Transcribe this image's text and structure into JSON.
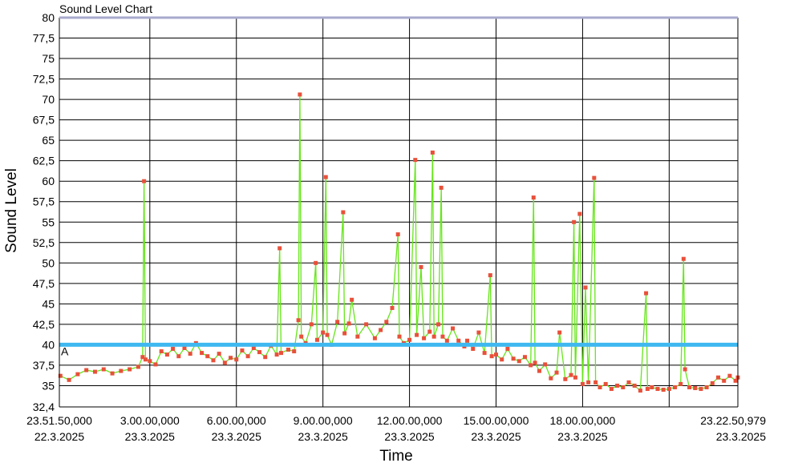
{
  "chart_data": {
    "type": "line",
    "title": "Sound Level Chart",
    "xlabel": "Time",
    "ylabel": "Sound Level",
    "ylim": [
      32.4,
      80
    ],
    "grid": true,
    "y_ticks": [
      "80",
      "77,5",
      "75",
      "72,5",
      "70",
      "67,5",
      "65",
      "62,5",
      "60",
      "57,5",
      "55",
      "52,5",
      "50",
      "47,5",
      "45",
      "42,5",
      "40",
      "37,5",
      "35",
      "32,4"
    ],
    "x_ticks": [
      {
        "time": "23.51.50,000",
        "date": "22.3.2025"
      },
      {
        "time": "3.00.00,000",
        "date": "23.3.2025"
      },
      {
        "time": "6.00.00,000",
        "date": "23.3.2025"
      },
      {
        "time": "9.00.00,000",
        "date": "23.3.2025"
      },
      {
        "time": "12.00.00,000",
        "date": "23.3.2025"
      },
      {
        "time": "15.00.00,000",
        "date": "23.3.2025"
      },
      {
        "time": "18.00.00,000",
        "date": "23.3.2025"
      },
      {
        "time": "23.22.50,979",
        "date": "23.3.2025"
      }
    ],
    "x_tick_hours": [
      -0.1361,
      3,
      6,
      9,
      12,
      15,
      18,
      23.3808
    ],
    "x_range_hours": [
      -0.1361,
      23.3808
    ],
    "gridline_hours": [
      3,
      6,
      9,
      12,
      15,
      18,
      21
    ],
    "threshold": {
      "value": 40,
      "label": "A",
      "color": "#3fb8f0"
    },
    "colors": {
      "line": "#66e61a",
      "points": "#e8503a",
      "threshold": "#3fb8f0",
      "top_line": "#a7a9cc"
    },
    "series": [
      {
        "values": [
          [
            -0.1,
            36.2
          ],
          [
            0.2,
            35.7
          ],
          [
            0.5,
            36.4
          ],
          [
            0.8,
            36.9
          ],
          [
            1.1,
            36.7
          ],
          [
            1.4,
            37.0
          ],
          [
            1.7,
            36.5
          ],
          [
            2.0,
            36.8
          ],
          [
            2.3,
            37.0
          ],
          [
            2.6,
            37.3
          ],
          [
            2.75,
            38.5
          ],
          [
            2.8,
            60.0
          ],
          [
            2.85,
            38.2
          ],
          [
            3.0,
            38.0
          ],
          [
            3.2,
            37.6
          ],
          [
            3.4,
            39.2
          ],
          [
            3.6,
            38.8
          ],
          [
            3.8,
            39.5
          ],
          [
            4.0,
            38.6
          ],
          [
            4.2,
            39.6
          ],
          [
            4.4,
            38.9
          ],
          [
            4.6,
            40.2
          ],
          [
            4.8,
            39.0
          ],
          [
            5.0,
            38.6
          ],
          [
            5.2,
            38.1
          ],
          [
            5.4,
            38.9
          ],
          [
            5.6,
            37.8
          ],
          [
            5.8,
            38.4
          ],
          [
            6.0,
            38.2
          ],
          [
            6.2,
            39.3
          ],
          [
            6.4,
            38.6
          ],
          [
            6.6,
            39.6
          ],
          [
            6.8,
            39.1
          ],
          [
            7.0,
            38.5
          ],
          [
            7.2,
            39.9
          ],
          [
            7.4,
            38.8
          ],
          [
            7.5,
            51.8
          ],
          [
            7.55,
            39.0
          ],
          [
            7.8,
            39.4
          ],
          [
            8.0,
            39.2
          ],
          [
            8.15,
            43.0
          ],
          [
            8.2,
            70.6
          ],
          [
            8.25,
            41.0
          ],
          [
            8.4,
            40.2
          ],
          [
            8.6,
            42.5
          ],
          [
            8.75,
            50.0
          ],
          [
            8.8,
            40.6
          ],
          [
            9.0,
            41.5
          ],
          [
            9.1,
            60.5
          ],
          [
            9.15,
            41.2
          ],
          [
            9.3,
            40.0
          ],
          [
            9.5,
            42.8
          ],
          [
            9.7,
            56.2
          ],
          [
            9.75,
            41.4
          ],
          [
            9.9,
            42.6
          ],
          [
            10.0,
            45.5
          ],
          [
            10.2,
            41.0
          ],
          [
            10.5,
            42.5
          ],
          [
            10.8,
            40.8
          ],
          [
            11.0,
            41.8
          ],
          [
            11.2,
            42.8
          ],
          [
            11.4,
            44.5
          ],
          [
            11.6,
            53.5
          ],
          [
            11.65,
            41.0
          ],
          [
            11.8,
            40.2
          ],
          [
            12.0,
            40.6
          ],
          [
            12.2,
            62.6
          ],
          [
            12.25,
            41.2
          ],
          [
            12.4,
            49.5
          ],
          [
            12.5,
            40.8
          ],
          [
            12.7,
            41.6
          ],
          [
            12.8,
            63.5
          ],
          [
            12.85,
            41.0
          ],
          [
            13.0,
            42.5
          ],
          [
            13.1,
            59.2
          ],
          [
            13.15,
            41.0
          ],
          [
            13.3,
            40.5
          ],
          [
            13.5,
            42.0
          ],
          [
            13.7,
            40.5
          ],
          [
            13.9,
            39.8
          ],
          [
            14.0,
            40.5
          ],
          [
            14.2,
            39.5
          ],
          [
            14.4,
            41.5
          ],
          [
            14.6,
            39.0
          ],
          [
            14.8,
            48.5
          ],
          [
            14.85,
            38.6
          ],
          [
            15.0,
            38.8
          ],
          [
            15.2,
            38.2
          ],
          [
            15.4,
            39.5
          ],
          [
            15.6,
            38.3
          ],
          [
            15.8,
            38.0
          ],
          [
            16.0,
            38.5
          ],
          [
            16.2,
            37.5
          ],
          [
            16.3,
            58.0
          ],
          [
            16.35,
            37.8
          ],
          [
            16.5,
            36.8
          ],
          [
            16.7,
            37.6
          ],
          [
            16.9,
            35.9
          ],
          [
            17.1,
            36.6
          ],
          [
            17.2,
            41.5
          ],
          [
            17.4,
            35.8
          ],
          [
            17.6,
            36.3
          ],
          [
            17.7,
            55.0
          ],
          [
            17.75,
            36.0
          ],
          [
            17.9,
            56.0
          ],
          [
            18.0,
            35.2
          ],
          [
            18.1,
            47.0
          ],
          [
            18.2,
            35.4
          ],
          [
            18.4,
            60.4
          ],
          [
            18.45,
            35.4
          ],
          [
            18.6,
            34.8
          ],
          [
            18.8,
            35.2
          ],
          [
            19.0,
            34.6
          ],
          [
            19.2,
            35.0
          ],
          [
            19.4,
            34.8
          ],
          [
            19.6,
            35.4
          ],
          [
            19.8,
            35.0
          ],
          [
            20.0,
            34.4
          ],
          [
            20.2,
            46.3
          ],
          [
            20.25,
            34.6
          ],
          [
            20.4,
            34.8
          ],
          [
            20.6,
            34.6
          ],
          [
            20.8,
            34.5
          ],
          [
            21.0,
            34.6
          ],
          [
            21.2,
            34.8
          ],
          [
            21.4,
            35.2
          ],
          [
            21.5,
            50.5
          ],
          [
            21.55,
            37.0
          ],
          [
            21.7,
            34.8
          ],
          [
            21.9,
            34.7
          ],
          [
            22.1,
            34.6
          ],
          [
            22.3,
            34.8
          ],
          [
            22.5,
            35.3
          ],
          [
            22.7,
            36.0
          ],
          [
            22.9,
            35.6
          ],
          [
            23.1,
            36.2
          ],
          [
            23.3,
            35.6
          ],
          [
            23.38,
            36.0
          ]
        ]
      }
    ]
  }
}
